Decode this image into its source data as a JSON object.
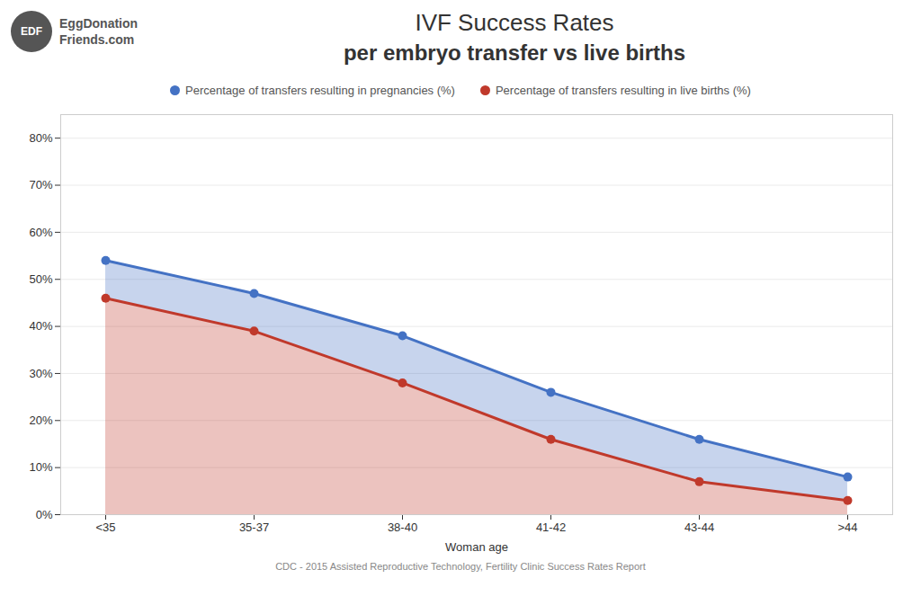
{
  "chart_data": {
    "type": "line",
    "title": "IVF Success Rates",
    "subtitle": "per embryo transfer vs live births",
    "xlabel": "Woman age",
    "source": "CDC - 2015 Assisted Reproductive Technology, Fertility Clinic Success Rates Report",
    "annotations": [
      "EDF",
      "EggDonation",
      "Friends.com"
    ],
    "categories": [
      "<35",
      "35-37",
      "38-40",
      "41-42",
      "43-44",
      ">44"
    ],
    "series": [
      {
        "name": "Percentage of transfers resulting in pregnancies (%)",
        "color": "#4472C4",
        "values": [
          54,
          47,
          38,
          26,
          16,
          8
        ]
      },
      {
        "name": "Percentage of transfers resulting in live births (%)",
        "color": "#C0392B",
        "values": [
          46,
          39,
          28,
          16,
          7,
          3
        ]
      }
    ],
    "ylim": [
      0,
      85
    ],
    "yticks": [
      {
        "value": 0,
        "label": "0%"
      },
      {
        "value": 10,
        "label": "10%"
      },
      {
        "value": 20,
        "label": "20%"
      },
      {
        "value": 30,
        "label": "30%"
      },
      {
        "value": 40,
        "label": "40%"
      },
      {
        "value": 50,
        "label": "50%"
      },
      {
        "value": 60,
        "label": "60%"
      },
      {
        "value": 70,
        "label": "70%"
      },
      {
        "value": 80,
        "label": "80%"
      }
    ],
    "grid": true,
    "legend": "top",
    "marker": "circle"
  }
}
